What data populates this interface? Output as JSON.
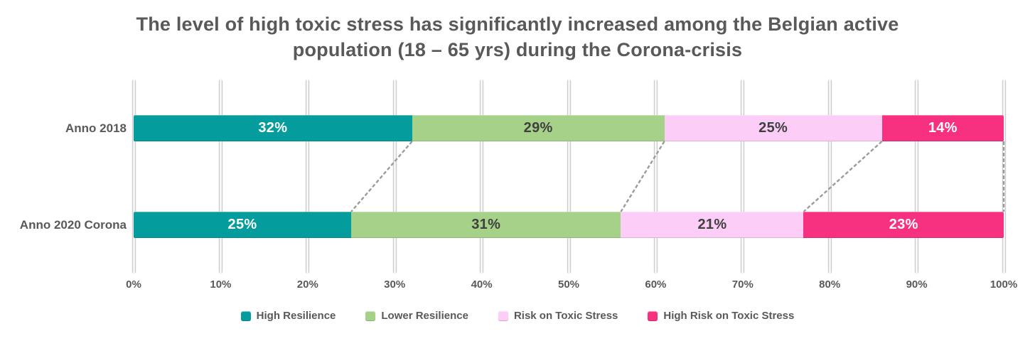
{
  "chart_title": {
    "lines": [
      "The level of high toxic stress has significantly increased among the Belgian active",
      "population (18 – 65 yrs) during the Corona-crisis"
    ]
  },
  "chart_data": {
    "type": "bar",
    "orientation": "horizontal",
    "stacked": true,
    "title": "The level of high toxic stress has significantly increased among the Belgian active population (18 – 65 yrs) during the Corona-crisis",
    "categories": [
      "Anno 2018",
      "Anno 2020 Corona"
    ],
    "series": [
      {
        "name": "High Resilience",
        "color": "#049c9c",
        "label_color": "#ffffff",
        "values": [
          32,
          25
        ]
      },
      {
        "name": "Lower Resilience",
        "color": "#a6d189",
        "label_color": "#404040",
        "values": [
          29,
          31
        ]
      },
      {
        "name": "Risk on Toxic Stress",
        "color": "#fccdf7",
        "label_color": "#404040",
        "values": [
          25,
          21
        ]
      },
      {
        "name": "High Risk on Toxic Stress",
        "color": "#f73180",
        "label_color": "#ffffff",
        "values": [
          14,
          23
        ]
      }
    ],
    "x_ticks": [
      "0%",
      "10%",
      "20%",
      "30%",
      "40%",
      "50%",
      "60%",
      "70%",
      "80%",
      "90%",
      "100%"
    ],
    "xlim": [
      0,
      100
    ],
    "value_suffix": "%",
    "grid": true,
    "legend_position": "bottom",
    "connectors": {
      "show": true,
      "color": "#9b9b9b",
      "style": "dashed"
    }
  },
  "style": {
    "title_color": "#595959",
    "axis_text_color": "#595959",
    "background": "#ffffff"
  }
}
